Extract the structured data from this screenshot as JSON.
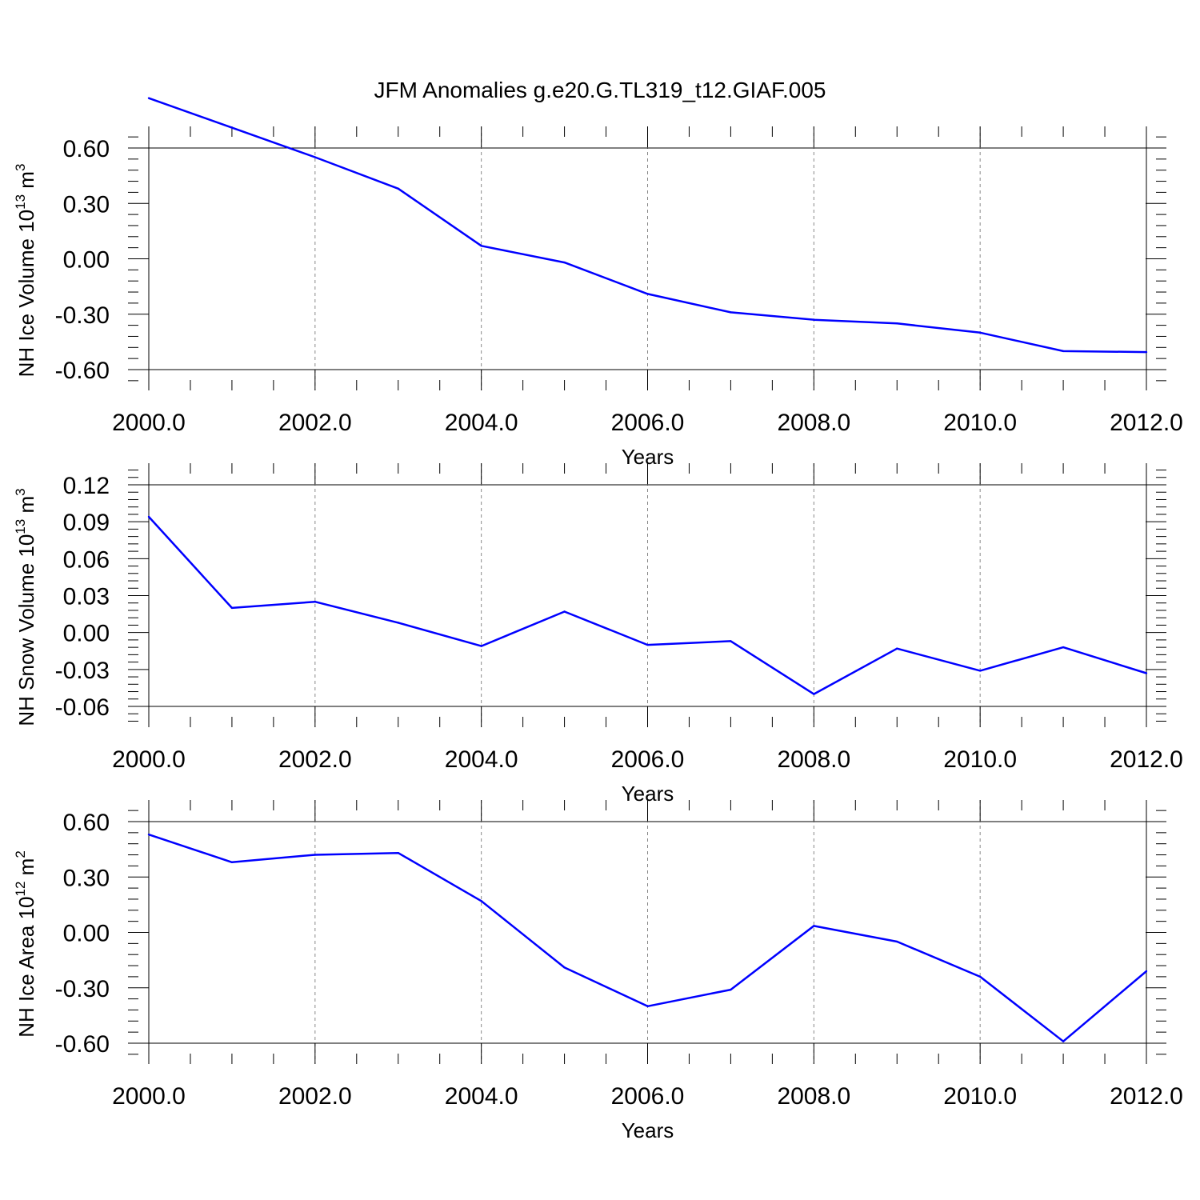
{
  "figure": {
    "title": "JFM Anomalies g.e20.G.TL319_t12.GIAF.005"
  },
  "chart_data": [
    {
      "type": "line",
      "ylabel": {
        "base": "NH Ice Volume 10",
        "exp": "13",
        "unit": " m",
        "unit_exp": "3"
      },
      "xlabel": "Years",
      "xlim": [
        2000,
        2012
      ],
      "ylim": [
        -0.6,
        0.9
      ],
      "yticks": [
        -0.6,
        -0.3,
        0.0,
        0.3,
        0.6
      ],
      "ytick_labels": [
        "-0.60",
        "-0.30",
        "0.00",
        "0.30",
        "0.60"
      ],
      "xticks": [
        2000,
        2002,
        2004,
        2006,
        2008,
        2010,
        2012
      ],
      "xtick_labels": [
        "2000.0",
        "2002.0",
        "2004.0",
        "2006.0",
        "2008.0",
        "2010.0",
        "2012.0"
      ],
      "grid": "vertical-dashed",
      "color": "#0000ff",
      "x": [
        2000,
        2001,
        2002,
        2003,
        2004,
        2005,
        2006,
        2007,
        2008,
        2009,
        2010,
        2011,
        2012
      ],
      "values": [
        0.87,
        0.71,
        0.55,
        0.38,
        0.07,
        -0.02,
        -0.19,
        -0.29,
        -0.33,
        -0.35,
        -0.4,
        -0.5,
        -0.505
      ]
    },
    {
      "type": "line",
      "ylabel": {
        "base": "NH Snow Volume 10",
        "exp": "13",
        "unit": " m",
        "unit_exp": "3"
      },
      "xlabel": "Years",
      "xlim": [
        2000,
        2012
      ],
      "ylim": [
        -0.06,
        0.12
      ],
      "yticks": [
        -0.06,
        -0.03,
        0.0,
        0.03,
        0.06,
        0.09,
        0.12
      ],
      "ytick_labels": [
        "-0.06",
        "-0.03",
        "0.00",
        "0.03",
        "0.06",
        "0.09",
        "0.12"
      ],
      "xticks": [
        2000,
        2002,
        2004,
        2006,
        2008,
        2010,
        2012
      ],
      "xtick_labels": [
        "2000.0",
        "2002.0",
        "2004.0",
        "2006.0",
        "2008.0",
        "2010.0",
        "2012.0"
      ],
      "grid": "vertical-dashed",
      "color": "#0000ff",
      "x": [
        2000,
        2001,
        2002,
        2003,
        2004,
        2005,
        2006,
        2007,
        2008,
        2009,
        2010,
        2011,
        2012
      ],
      "values": [
        0.094,
        0.02,
        0.025,
        0.008,
        -0.011,
        0.017,
        -0.01,
        -0.007,
        -0.05,
        -0.013,
        -0.031,
        -0.012,
        -0.033
      ]
    },
    {
      "type": "line",
      "ylabel": {
        "base": "NH Ice Area 10",
        "exp": "12",
        "unit": " m",
        "unit_exp": "2"
      },
      "xlabel": "Years",
      "xlim": [
        2000,
        2012
      ],
      "ylim": [
        -0.6,
        0.6
      ],
      "yticks": [
        -0.6,
        -0.3,
        0.0,
        0.3,
        0.6
      ],
      "ytick_labels": [
        "-0.60",
        "-0.30",
        "0.00",
        "0.30",
        "0.60"
      ],
      "xticks": [
        2000,
        2002,
        2004,
        2006,
        2008,
        2010,
        2012
      ],
      "xtick_labels": [
        "2000.0",
        "2002.0",
        "2004.0",
        "2006.0",
        "2008.0",
        "2010.0",
        "2012.0"
      ],
      "grid": "vertical-dashed",
      "color": "#0000ff",
      "x": [
        2000,
        2001,
        2002,
        2003,
        2004,
        2005,
        2006,
        2007,
        2008,
        2009,
        2010,
        2011,
        2012
      ],
      "values": [
        0.53,
        0.38,
        0.42,
        0.43,
        0.17,
        -0.19,
        -0.4,
        -0.31,
        0.035,
        -0.05,
        -0.24,
        -0.59,
        -0.21
      ]
    }
  ]
}
